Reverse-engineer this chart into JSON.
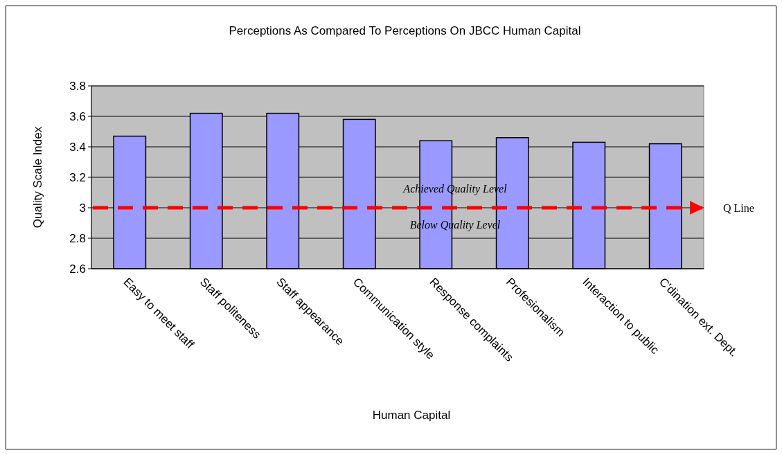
{
  "chart_data": {
    "type": "bar",
    "title": "Perceptions As Compared To Perceptions On JBCC Human Capital",
    "xlabel": "Human Capital",
    "ylabel": "Quality Scale Index",
    "categories": [
      "Easy to meet staff",
      "Staff politeness",
      "Staff appearance",
      "Communication style",
      "Response complaints",
      "Profesionalism",
      "Interaction to public",
      "C'dination ext. Dept."
    ],
    "values": [
      3.47,
      3.62,
      3.62,
      3.58,
      3.44,
      3.46,
      3.43,
      3.42
    ],
    "color": "#9999ff",
    "ylim": [
      2.6,
      3.8
    ],
    "yticks": [
      2.6,
      2.8,
      3,
      3.2,
      3.4,
      3.6,
      3.8
    ],
    "grid": "y",
    "ref_lines": [
      {
        "axis": "y",
        "value": 3,
        "label": "Q Line",
        "color": "#ff0000",
        "line_style": "dashed"
      }
    ],
    "annotations": [
      "Achieved Quality Level",
      "Below Quality Level"
    ]
  }
}
